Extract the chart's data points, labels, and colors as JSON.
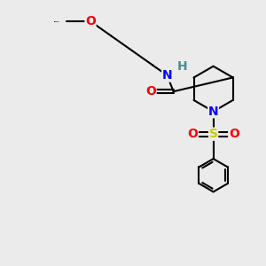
{
  "background_color": "#ebebeb",
  "bond_color": "#000000",
  "atom_colors": {
    "O": "#ff0000",
    "N": "#0000ff",
    "S": "#cccc00",
    "H": "#4a9090",
    "C": "#000000"
  },
  "bond_lw": 1.5,
  "fontsize": 10,
  "xlim": [
    0,
    10
  ],
  "ylim": [
    0,
    10
  ]
}
